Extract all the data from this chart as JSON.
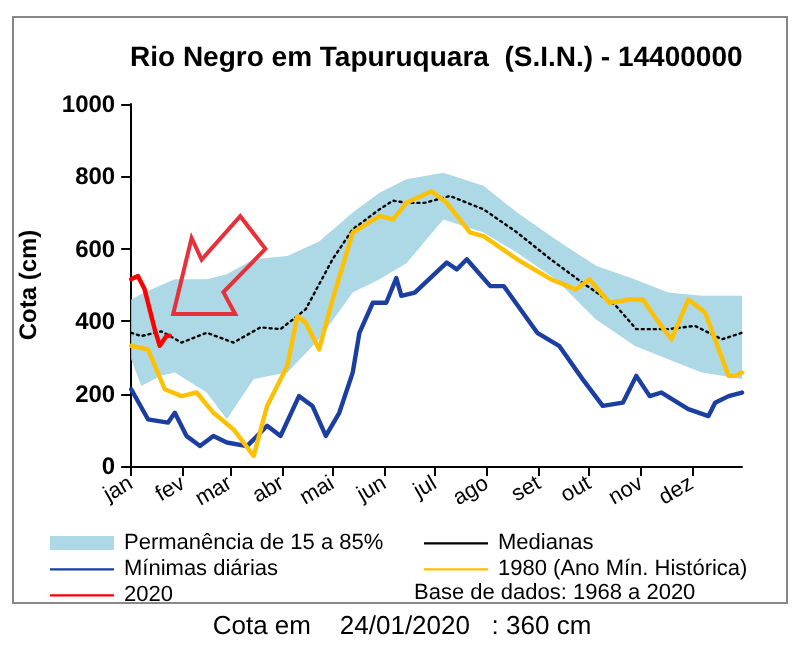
{
  "chart_data": {
    "type": "line",
    "title": "Rio Negro em Tapuruquara  (S.I.N.) - 14400000",
    "ylabel": "Cota (cm)",
    "xlim": [
      "--01-01",
      "--12-31"
    ],
    "xticks": [
      {
        "value": "--01-01",
        "label": "jan"
      },
      {
        "value": "--02-01",
        "label": "fev"
      },
      {
        "value": "--03-01",
        "label": "mar"
      },
      {
        "value": "--04-01",
        "label": "abr"
      },
      {
        "value": "--05-01",
        "label": "mai"
      },
      {
        "value": "--06-01",
        "label": "jun"
      },
      {
        "value": "--07-01",
        "label": "jul"
      },
      {
        "value": "--08-01",
        "label": "ago"
      },
      {
        "value": "--09-01",
        "label": "set"
      },
      {
        "value": "--10-01",
        "label": "out"
      },
      {
        "value": "--11-01",
        "label": "nov"
      },
      {
        "value": "--12-01",
        "label": "dez"
      }
    ],
    "ylim": [
      0,
      1000
    ],
    "yticks": [
      0,
      200,
      400,
      600,
      800,
      1000
    ],
    "grid": false,
    "marker": "none",
    "legend": "bottom",
    "series": [
      {
        "name": "Permanência de 15 a 85%",
        "type": "area",
        "color": "#add8e6",
        "x": [
          "--01-01",
          "--01-07",
          "--01-19",
          "--01-27",
          "--02-15",
          "--02-27",
          "--03-15",
          "--04-04",
          "--04-23",
          "--05-13",
          "--05-29",
          "--06-14",
          "--07-06",
          "--07-30",
          "--08-19",
          "--09-11",
          "--10-05",
          "--10-28",
          "--11-17",
          "--12-07",
          "--12-31"
        ],
        "values": [
          null,
          null,
          null,
          null,
          null,
          null,
          null,
          null,
          null,
          null,
          null,
          null,
          null,
          null,
          null,
          null,
          null,
          null,
          null,
          null,
          null
        ],
        "lower": [
          295,
          221,
          250,
          258,
          203,
          129,
          240,
          258,
          350,
          479,
          516,
          560,
          681,
          645,
          589,
          516,
          405,
          332,
          295,
          258,
          240
        ],
        "upper": [
          460,
          475,
          500,
          516,
          516,
          530,
          571,
          580,
          620,
          700,
          755,
          792,
          810,
          774,
          700,
          626,
          553,
          516,
          479,
          470,
          470
        ]
      },
      {
        "name": "Medianas",
        "color": "#000000",
        "line_style": "dotted",
        "x": [
          "--01-01",
          "--01-07",
          "--01-19",
          "--01-31",
          "--02-15",
          "--03-03",
          "--03-19",
          "--03-31",
          "--04-15",
          "--05-01",
          "--05-13",
          "--05-29",
          "--06-06",
          "--06-14",
          "--06-25",
          "--07-10",
          "--07-30",
          "--08-19",
          "--09-08",
          "--09-27",
          "--10-17",
          "--10-29",
          "--11-17",
          "--12-03",
          "--12-19",
          "--12-31"
        ],
        "values": [
          368,
          359,
          372,
          341,
          368,
          341,
          383,
          378,
          433,
          571,
          654,
          709,
          733,
          727,
          727,
          746,
          709,
          645,
          571,
          506,
          442,
          378,
          378,
          387,
          350,
          368
        ]
      },
      {
        "name": "Mínimas diárias",
        "color": "#1a3fa0",
        "line_style": "solid",
        "x": [
          "--01-01",
          "--01-11",
          "--01-23",
          "--01-27",
          "--02-03",
          "--02-11",
          "--02-19",
          "--02-27",
          "--03-11",
          "--03-23",
          "--03-31",
          "--04-11",
          "--04-19",
          "--04-27",
          "--05-05",
          "--05-13",
          "--05-17",
          "--05-25",
          "--06-02",
          "--06-08",
          "--06-11",
          "--06-19",
          "--07-08",
          "--07-14",
          "--07-20",
          "--08-03",
          "--08-11",
          "--08-31",
          "--09-13",
          "--09-27",
          "--10-09",
          "--10-21",
          "--10-29",
          "--11-06",
          "--11-13",
          "--11-29",
          "--12-11",
          "--12-15",
          "--12-23",
          "--12-31"
        ],
        "values": [
          212,
          129,
          120,
          147,
          83,
          55,
          83,
          65,
          55,
          111,
          83,
          193,
          166,
          83,
          147,
          258,
          368,
          451,
          451,
          519,
          470,
          479,
          562,
          543,
          571,
          497,
          497,
          368,
          332,
          240,
          166,
          175,
          249,
          193,
          203,
          157,
          138,
          175,
          193,
          203
        ]
      },
      {
        "name": "1980 (Ano Mín. Histórica)",
        "color": "#ffc000",
        "line_style": "solid",
        "x": [
          "--01-01",
          "--01-11",
          "--01-21",
          "--01-31",
          "--02-09",
          "--02-19",
          "--03-03",
          "--03-15",
          "--03-23",
          "--04-04",
          "--04-10",
          "--04-15",
          "--04-23",
          "--05-01",
          "--05-13",
          "--05-29",
          "--06-06",
          "--06-14",
          "--06-29",
          "--07-08",
          "--07-22",
          "--07-30",
          "--08-19",
          "--09-08",
          "--09-23",
          "--10-01",
          "--10-13",
          "--10-25",
          "--11-02",
          "--11-10",
          "--11-19",
          "--11-29",
          "--12-09",
          "--12-23",
          "--12-27",
          "--12-31"
        ],
        "values": [
          332,
          322,
          212,
          193,
          203,
          147,
          101,
          28,
          166,
          276,
          414,
          396,
          322,
          460,
          645,
          691,
          681,
          727,
          759,
          727,
          645,
          635,
          571,
          516,
          488,
          516,
          451,
          460,
          460,
          405,
          350,
          460,
          424,
          249,
          249,
          258
        ]
      },
      {
        "name": "2020",
        "color": "#ff0000",
        "line_style": "solid",
        "x": [
          "--01-01",
          "--01-05",
          "--01-09",
          "--01-15",
          "--01-18",
          "--01-22",
          "--01-24"
        ],
        "values": [
          516,
          525,
          488,
          378,
          332,
          359,
          360
        ]
      }
    ],
    "annotations": [
      "Base de dados: 1968 a 2020",
      "Cota em    24/01/2020   : 360 cm"
    ]
  }
}
